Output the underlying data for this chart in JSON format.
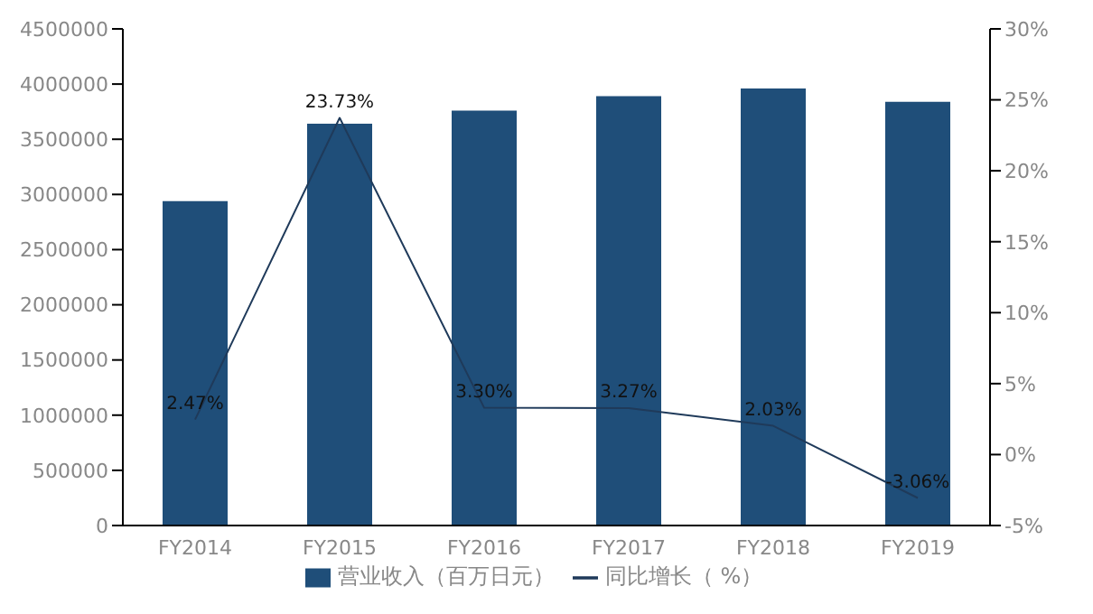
{
  "chart_data": {
    "type": "bar",
    "categories": [
      "FY2014",
      "FY2015",
      "FY2016",
      "FY2017",
      "FY2018",
      "FY2019"
    ],
    "series": [
      {
        "name": "营业收入（百万日元）",
        "color": "#1f4e79",
        "values": [
          2940000,
          3640000,
          3760000,
          3890000,
          3960000,
          3840000
        ]
      },
      {
        "name": "同比增长（ %）",
        "type": "line",
        "axis": "y2",
        "color": "#1f3a5a",
        "values": [
          2.47,
          23.73,
          3.3,
          3.27,
          2.03,
          -3.06
        ],
        "value_labels": [
          "2.47%",
          "23.73%",
          "3.30%",
          "3.27%",
          "2.03%",
          "-3.06%"
        ]
      }
    ],
    "ylim": [
      0,
      4500000
    ],
    "yticks": [
      0,
      500000,
      1000000,
      1500000,
      2000000,
      2500000,
      3000000,
      3500000,
      4000000,
      4500000
    ],
    "y2lim": [
      -5,
      30
    ],
    "y2ticks": [
      {
        "value": -5,
        "label": "-5%"
      },
      {
        "value": 0,
        "label": "0%"
      },
      {
        "value": 5,
        "label": "5%"
      },
      {
        "value": 10,
        "label": "10%"
      },
      {
        "value": 15,
        "label": "15%"
      },
      {
        "value": 20,
        "label": "20%"
      },
      {
        "value": 25,
        "label": "25%"
      },
      {
        "value": 30,
        "label": "30%"
      }
    ],
    "grid": false,
    "legend": "bottom",
    "marker": "none"
  }
}
